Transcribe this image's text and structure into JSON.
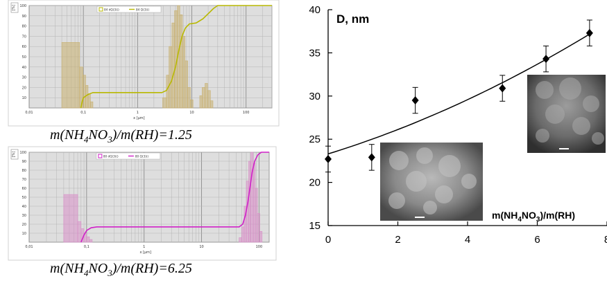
{
  "captions": {
    "top": {
      "pre": "m(NH",
      "s1": "4",
      "mid": "NO",
      "s2": "3",
      "post": ")/m(RH)=1.25"
    },
    "bottom": {
      "pre": "m(NH",
      "s1": "4",
      "mid": "NO",
      "s2": "3",
      "post": ")/m(RH)=6.25"
    }
  },
  "chart_data": [
    {
      "type": "bar",
      "title": "",
      "xlabel": "x [µm]",
      "ylabel": "[%]",
      "xscale": "log",
      "xlim": [
        0.01,
        300
      ],
      "ylim": [
        0,
        100
      ],
      "xticks": [
        "0,01",
        "0,1",
        "1",
        "10",
        "100"
      ],
      "yticks": [
        "10",
        "20",
        "30",
        "40",
        "50",
        "60",
        "70",
        "80",
        "90",
        "100"
      ],
      "legend": [
        "84 dQ(3)()",
        "84 Q(3)()"
      ],
      "color": "#b8b800",
      "bar_color": "#c8b070",
      "bins": [
        {
          "x0": 0.04,
          "x1": 0.085,
          "v": 64
        },
        {
          "x0": 0.085,
          "x1": 0.098,
          "v": 40
        },
        {
          "x0": 0.098,
          "x1": 0.11,
          "v": 32
        },
        {
          "x0": 0.11,
          "x1": 0.122,
          "v": 22
        },
        {
          "x0": 0.122,
          "x1": 0.135,
          "v": 14
        },
        {
          "x0": 0.135,
          "x1": 0.15,
          "v": 6
        },
        {
          "x0": 2.9,
          "x1": 3.4,
          "v": 10
        },
        {
          "x0": 3.4,
          "x1": 3.8,
          "v": 32
        },
        {
          "x0": 3.8,
          "x1": 4.3,
          "v": 60
        },
        {
          "x0": 4.3,
          "x1": 4.8,
          "v": 83
        },
        {
          "x0": 4.8,
          "x1": 5.4,
          "v": 95
        },
        {
          "x0": 5.4,
          "x1": 6.0,
          "v": 100
        },
        {
          "x0": 6.0,
          "x1": 6.7,
          "v": 91
        },
        {
          "x0": 6.7,
          "x1": 7.5,
          "v": 70
        },
        {
          "x0": 7.5,
          "x1": 8.4,
          "v": 46
        },
        {
          "x0": 8.4,
          "x1": 9.4,
          "v": 20
        },
        {
          "x0": 9.4,
          "x1": 10.5,
          "v": 8
        },
        {
          "x0": 14,
          "x1": 15.5,
          "v": 12
        },
        {
          "x0": 15.5,
          "x1": 17.5,
          "v": 20
        },
        {
          "x0": 17.5,
          "x1": 19.5,
          "v": 24
        },
        {
          "x0": 19.5,
          "x1": 22,
          "v": 17
        },
        {
          "x0": 22,
          "x1": 24.5,
          "v": 7
        }
      ],
      "cumulative": [
        [
          0.09,
          0
        ],
        [
          0.095,
          6
        ],
        [
          0.1,
          10
        ],
        [
          0.12,
          13
        ],
        [
          0.15,
          15
        ],
        [
          0.3,
          15
        ],
        [
          2.8,
          15
        ],
        [
          3.4,
          17
        ],
        [
          4.2,
          26
        ],
        [
          5,
          40
        ],
        [
          5.8,
          57
        ],
        [
          6.6,
          70
        ],
        [
          7.6,
          78
        ],
        [
          9,
          82
        ],
        [
          12,
          83
        ],
        [
          16,
          87
        ],
        [
          20,
          92
        ],
        [
          25,
          97
        ],
        [
          30,
          100
        ],
        [
          300,
          100
        ]
      ]
    },
    {
      "type": "bar",
      "title": "",
      "xlabel": "x [µm]",
      "ylabel": "[%]",
      "xscale": "log",
      "xlim": [
        0.01,
        150
      ],
      "ylim": [
        0,
        100
      ],
      "xticks": [
        "0,01",
        "0,1",
        "1",
        "10",
        "100"
      ],
      "yticks": [
        "10",
        "20",
        "30",
        "40",
        "50",
        "60",
        "70",
        "80",
        "90",
        "100"
      ],
      "legend": [
        "80 dQ(3)()",
        "80 Q(3)()"
      ],
      "color": "#d020c8",
      "bar_color": "#d890c8",
      "bins": [
        {
          "x0": 0.04,
          "x1": 0.07,
          "v": 53
        },
        {
          "x0": 0.07,
          "x1": 0.08,
          "v": 23
        },
        {
          "x0": 0.08,
          "x1": 0.09,
          "v": 15
        },
        {
          "x0": 0.09,
          "x1": 0.1,
          "v": 10
        },
        {
          "x0": 0.1,
          "x1": 0.112,
          "v": 6
        },
        {
          "x0": 0.112,
          "x1": 0.125,
          "v": 3
        },
        {
          "x0": 45,
          "x1": 50,
          "v": 5
        },
        {
          "x0": 50,
          "x1": 55,
          "v": 17
        },
        {
          "x0": 55,
          "x1": 60,
          "v": 40
        },
        {
          "x0": 60,
          "x1": 66,
          "v": 68
        },
        {
          "x0": 66,
          "x1": 72,
          "v": 90
        },
        {
          "x0": 72,
          "x1": 79,
          "v": 100
        },
        {
          "x0": 79,
          "x1": 86,
          "v": 88
        },
        {
          "x0": 86,
          "x1": 94,
          "v": 60
        },
        {
          "x0": 94,
          "x1": 103,
          "v": 32
        },
        {
          "x0": 103,
          "x1": 113,
          "v": 12
        }
      ],
      "cumulative": [
        [
          0.08,
          0
        ],
        [
          0.09,
          8
        ],
        [
          0.1,
          13
        ],
        [
          0.12,
          16
        ],
        [
          0.15,
          17
        ],
        [
          1,
          17
        ],
        [
          45,
          17
        ],
        [
          52,
          20
        ],
        [
          58,
          30
        ],
        [
          64,
          45
        ],
        [
          70,
          62
        ],
        [
          76,
          78
        ],
        [
          84,
          90
        ],
        [
          95,
          97
        ],
        [
          110,
          100
        ],
        [
          150,
          100
        ]
      ]
    },
    {
      "type": "scatter",
      "title": "",
      "ylabel": "D, nm",
      "xlabel": "m(NH4NO3)/m(RH)",
      "xlabel_parts": {
        "pre": "m(NH",
        "s1": "4",
        "mid": "NO",
        "s2": "3",
        "post": ")/m(RH)"
      },
      "xlim": [
        0,
        8
      ],
      "ylim": [
        15,
        40
      ],
      "xticks": [
        0,
        2,
        4,
        6,
        8
      ],
      "yticks": [
        15,
        20,
        25,
        30,
        35,
        40
      ],
      "points": [
        {
          "x": 0,
          "y": 22.7,
          "err": 1.5
        },
        {
          "x": 1.25,
          "y": 22.9,
          "err": 1.5
        },
        {
          "x": 2.5,
          "y": 29.5,
          "err": 1.5
        },
        {
          "x": 5,
          "y": 30.9,
          "err": 1.5
        },
        {
          "x": 6.25,
          "y": 34.3,
          "err": 1.5
        },
        {
          "x": 7.5,
          "y": 37.3,
          "err": 1.5
        }
      ],
      "trend": {
        "type": "quadratic",
        "coeffs": [
          23.3,
          1.25,
          0.08
        ]
      }
    }
  ]
}
